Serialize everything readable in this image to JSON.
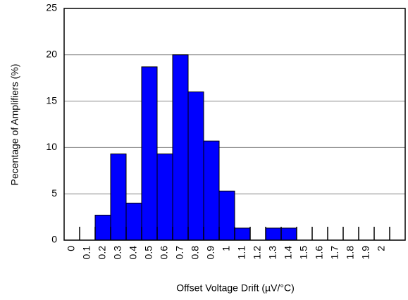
{
  "chart_data": {
    "type": "bar",
    "x_label": "Offset Voltage Drift (µV/°C)",
    "y_label": "Pecentage of Amplifiers (%)",
    "categories": [
      "0",
      "0.1",
      "0.2",
      "0.3",
      "0.4",
      "0.5",
      "0.6",
      "0.7",
      "0.8",
      "0.9",
      "1",
      "1.1",
      "1.2",
      "1.3",
      "1.4",
      "1.5",
      "1.6",
      "1.7",
      "1.8",
      "1.9",
      "2",
      null
    ],
    "values": [
      0,
      0,
      2.7,
      9.3,
      4.0,
      18.7,
      9.3,
      20,
      16,
      10.7,
      5.3,
      1.3,
      0,
      1.3,
      1.3,
      0,
      0,
      0,
      0,
      0,
      0,
      0
    ],
    "color": "#0000ff",
    "ylim": [
      0,
      25
    ],
    "yticks": [
      0,
      5,
      10,
      15,
      20,
      25
    ],
    "grid": true
  }
}
